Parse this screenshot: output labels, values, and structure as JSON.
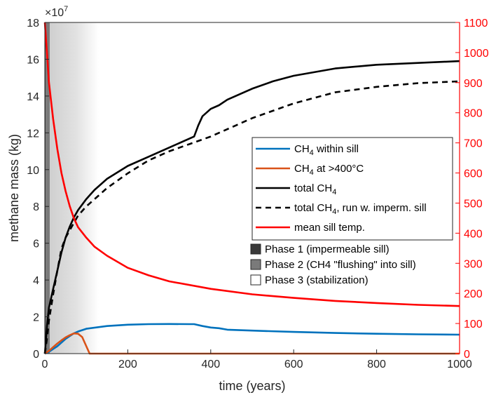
{
  "chart_data": {
    "type": "line",
    "xlabel": "time (years)",
    "ylabel": "methane mass (kg)",
    "y_exponent_label": "×10",
    "y_exponent_power": "7",
    "xlim": [
      0,
      1000
    ],
    "ylim_left": [
      0,
      18
    ],
    "ylim_right": [
      0,
      1100
    ],
    "x_ticks": [
      "0",
      "200",
      "400",
      "600",
      "800",
      "1000"
    ],
    "y_ticks_left": [
      "0",
      "2",
      "4",
      "6",
      "8",
      "10",
      "12",
      "14",
      "16",
      "18"
    ],
    "y_ticks_right": [
      "0",
      "100",
      "200",
      "300",
      "400",
      "500",
      "600",
      "700",
      "800",
      "900",
      "1000",
      "1100"
    ],
    "grid": false,
    "legend_position": "center-right",
    "phases": [
      {
        "label": "Phase 1 (impermeable sill)",
        "x_start": 0,
        "x_end": 2,
        "color": "#3a3a3a"
      },
      {
        "label": "Phase 2 (CH4 \"flushing\" into sill)",
        "x_start": 2,
        "x_end": 12,
        "color": "#7a7a7a"
      },
      {
        "label": "Phase 3 (stabilization)",
        "x_start": 12,
        "x_end": 130,
        "color": "#ffffff"
      }
    ],
    "series": [
      {
        "name_main": "CH",
        "name_sub": "4",
        "name_rest": " within sill",
        "color": "#0072bd",
        "dash": "",
        "axis": "left",
        "points": [
          [
            0,
            0
          ],
          [
            10,
            0.1
          ],
          [
            20,
            0.25
          ],
          [
            30,
            0.4
          ],
          [
            40,
            0.6
          ],
          [
            50,
            0.8
          ],
          [
            60,
            0.95
          ],
          [
            70,
            1.1
          ],
          [
            80,
            1.2
          ],
          [
            100,
            1.35
          ],
          [
            150,
            1.5
          ],
          [
            200,
            1.57
          ],
          [
            250,
            1.6
          ],
          [
            300,
            1.61
          ],
          [
            350,
            1.6
          ],
          [
            360,
            1.6
          ],
          [
            380,
            1.5
          ],
          [
            400,
            1.42
          ],
          [
            420,
            1.38
          ],
          [
            440,
            1.3
          ],
          [
            500,
            1.25
          ],
          [
            600,
            1.18
          ],
          [
            700,
            1.12
          ],
          [
            800,
            1.08
          ],
          [
            900,
            1.05
          ],
          [
            1000,
            1.03
          ]
        ]
      },
      {
        "name_main": "CH",
        "name_sub": "4",
        "name_rest": " at >400°C",
        "color": "#d95319",
        "dash": "",
        "axis": "left",
        "points": [
          [
            0,
            0
          ],
          [
            10,
            0.15
          ],
          [
            20,
            0.35
          ],
          [
            30,
            0.55
          ],
          [
            40,
            0.72
          ],
          [
            50,
            0.88
          ],
          [
            60,
            1.0
          ],
          [
            70,
            1.1
          ],
          [
            80,
            1.08
          ],
          [
            90,
            0.9
          ],
          [
            100,
            0.4
          ],
          [
            108,
            0.0
          ],
          [
            1000,
            0.0
          ]
        ]
      },
      {
        "name_main": "total CH",
        "name_sub": "4",
        "name_rest": "",
        "color": "#000000",
        "dash": "",
        "axis": "left",
        "points": [
          [
            0,
            0
          ],
          [
            5,
            1.5
          ],
          [
            10,
            2.5
          ],
          [
            20,
            3.5
          ],
          [
            30,
            4.5
          ],
          [
            40,
            5.5
          ],
          [
            50,
            6.3
          ],
          [
            60,
            6.9
          ],
          [
            70,
            7.4
          ],
          [
            80,
            7.8
          ],
          [
            100,
            8.4
          ],
          [
            120,
            8.9
          ],
          [
            150,
            9.5
          ],
          [
            200,
            10.2
          ],
          [
            250,
            10.7
          ],
          [
            300,
            11.2
          ],
          [
            350,
            11.7
          ],
          [
            360,
            11.8
          ],
          [
            370,
            12.4
          ],
          [
            380,
            12.9
          ],
          [
            400,
            13.3
          ],
          [
            420,
            13.5
          ],
          [
            440,
            13.8
          ],
          [
            500,
            14.4
          ],
          [
            550,
            14.8
          ],
          [
            600,
            15.1
          ],
          [
            700,
            15.5
          ],
          [
            800,
            15.7
          ],
          [
            900,
            15.8
          ],
          [
            1000,
            15.9
          ]
        ]
      },
      {
        "name_main": "total CH",
        "name_sub": "4",
        "name_rest": ", run w. imperm. sill",
        "color": "#000000",
        "dash": "8 6",
        "axis": "left",
        "points": [
          [
            0,
            0
          ],
          [
            5,
            0.8
          ],
          [
            10,
            1.8
          ],
          [
            20,
            3.2
          ],
          [
            30,
            4.5
          ],
          [
            40,
            5.7
          ],
          [
            50,
            6.3
          ],
          [
            60,
            6.7
          ],
          [
            70,
            7.1
          ],
          [
            80,
            7.5
          ],
          [
            100,
            8.0
          ],
          [
            130,
            8.6
          ],
          [
            150,
            9.0
          ],
          [
            200,
            9.8
          ],
          [
            250,
            10.5
          ],
          [
            300,
            11.0
          ],
          [
            350,
            11.4
          ],
          [
            400,
            11.8
          ],
          [
            450,
            12.3
          ],
          [
            500,
            12.8
          ],
          [
            550,
            13.2
          ],
          [
            600,
            13.6
          ],
          [
            700,
            14.2
          ],
          [
            800,
            14.5
          ],
          [
            900,
            14.7
          ],
          [
            1000,
            14.8
          ]
        ]
      },
      {
        "name_main": "mean sill temp.",
        "name_sub": "",
        "name_rest": "",
        "color": "#ff0000",
        "dash": "",
        "axis": "right",
        "points": [
          [
            0,
            1100
          ],
          [
            5,
            1000
          ],
          [
            10,
            900
          ],
          [
            20,
            780
          ],
          [
            30,
            680
          ],
          [
            40,
            600
          ],
          [
            50,
            540
          ],
          [
            60,
            490
          ],
          [
            70,
            450
          ],
          [
            80,
            420
          ],
          [
            100,
            385
          ],
          [
            120,
            355
          ],
          [
            150,
            325
          ],
          [
            200,
            285
          ],
          [
            250,
            260
          ],
          [
            300,
            240
          ],
          [
            400,
            215
          ],
          [
            500,
            197
          ],
          [
            600,
            185
          ],
          [
            700,
            175
          ],
          [
            800,
            168
          ],
          [
            900,
            162
          ],
          [
            1000,
            158
          ]
        ]
      }
    ]
  }
}
